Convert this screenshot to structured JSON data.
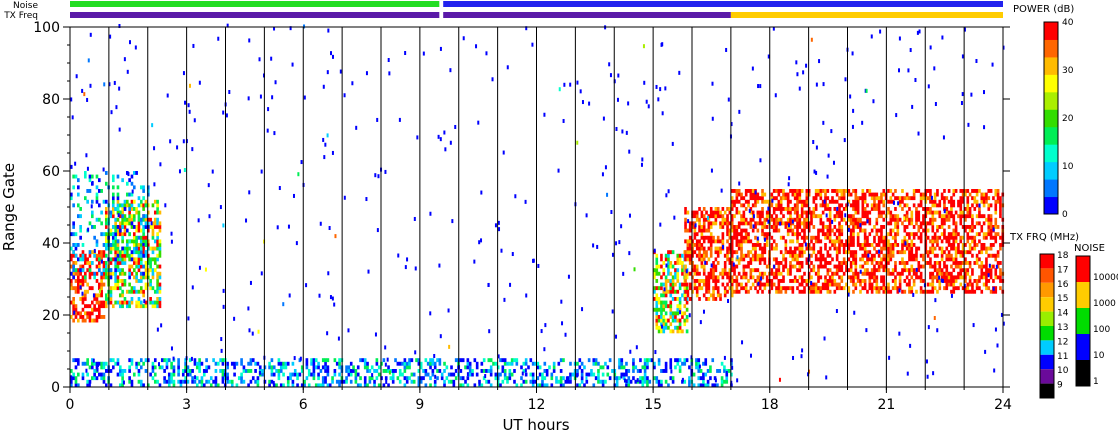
{
  "chart_data": {
    "type": "heatmap",
    "xlabel": "UT hours",
    "ylabel": "Range Gate",
    "xlim": [
      0,
      24
    ],
    "ylim": [
      0,
      100
    ],
    "x_ticks": [
      "0",
      "3",
      "6",
      "9",
      "12",
      "15",
      "18",
      "21",
      "24"
    ],
    "y_ticks": [
      "0",
      "20",
      "40",
      "60",
      "80",
      "100"
    ],
    "hour_lines": [
      1,
      2,
      3,
      4,
      5,
      6,
      7,
      8,
      9,
      10,
      11,
      12,
      13,
      14,
      15,
      16,
      17,
      18,
      19,
      20,
      21,
      22,
      23
    ],
    "top_strips": {
      "noise_label": "Noise",
      "txfreq_label": "TX Freq",
      "noise_segments": [
        {
          "from": 0,
          "to": 9.5,
          "color": "#22dd22"
        },
        {
          "from": 9.6,
          "to": 24,
          "color": "#2222ee"
        }
      ],
      "txfreq_segments": [
        {
          "from": 0,
          "to": 9.5,
          "color": "#5a1aa8"
        },
        {
          "from": 9.6,
          "to": 17,
          "color": "#5a1aa8"
        },
        {
          "from": 17,
          "to": 24,
          "color": "#ffcc00"
        }
      ]
    },
    "power_colorbar": {
      "title": "POWER (dB)",
      "ticks": [
        "0",
        "10",
        "20",
        "30",
        "40"
      ],
      "colors": [
        "#0000ff",
        "#0077ff",
        "#00ccff",
        "#00ffcc",
        "#00ee55",
        "#33dd00",
        "#aaee00",
        "#ffff00",
        "#ffbb00",
        "#ff6600",
        "#ff0000"
      ]
    },
    "txfreq_colorbar": {
      "title": "TX FRQ (MHz)",
      "ticks": [
        "18",
        "17",
        "16",
        "15",
        "14",
        "13",
        "12",
        "11",
        "10",
        "9"
      ],
      "colors": [
        "#ff0000",
        "#ff5500",
        "#ff9900",
        "#ffcc00",
        "#99ee00",
        "#00dd00",
        "#00ccff",
        "#0000ff",
        "#6a0a9a",
        "#000000"
      ]
    },
    "noise_colorbar": {
      "title": "NOISE",
      "ticks": [
        "10000",
        "1000",
        "100",
        "10",
        "1"
      ],
      "colors": [
        "#ff0000",
        "#ffcc00",
        "#00dd00",
        "#0000ff",
        "#000000"
      ]
    },
    "echo_regions": [
      {
        "t0": 0.0,
        "t1": 0.9,
        "g0": 18,
        "g1": 38,
        "level": "high"
      },
      {
        "t0": 0.9,
        "t1": 2.3,
        "g0": 22,
        "g1": 52,
        "level": "mid"
      },
      {
        "t0": 0.0,
        "t1": 2.0,
        "g0": 30,
        "g1": 60,
        "level": "low"
      },
      {
        "t0": 15.0,
        "t1": 15.9,
        "g0": 15,
        "g1": 38,
        "level": "mid"
      },
      {
        "t0": 15.8,
        "t1": 17.0,
        "g0": 24,
        "g1": 50,
        "level": "high"
      },
      {
        "t0": 17.0,
        "t1": 24.0,
        "g0": 26,
        "g1": 55,
        "level": "high"
      },
      {
        "t0": 0.0,
        "t1": 17.0,
        "g0": 0,
        "g1": 8,
        "level": "ground"
      }
    ]
  }
}
